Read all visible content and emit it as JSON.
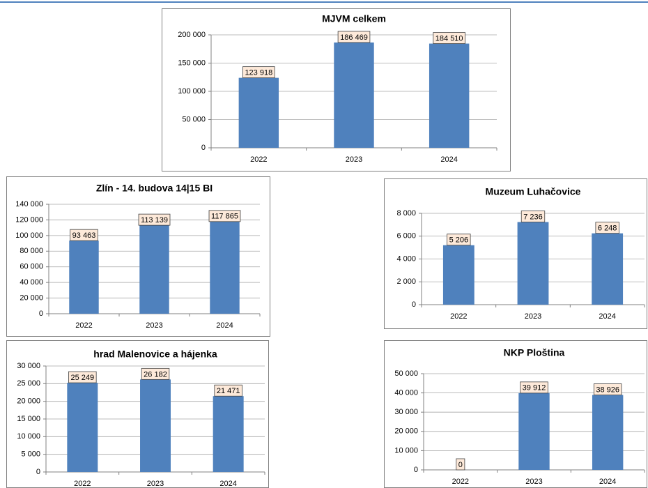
{
  "chart_data": [
    {
      "type": "bar",
      "title": "MJVM celkem",
      "categories": [
        "2022",
        "2023",
        "2024"
      ],
      "values": [
        123918,
        186469,
        184510
      ],
      "value_labels": [
        "123 918",
        "186 469",
        "184 510"
      ],
      "color": "#4f81bd",
      "ylim": [
        0,
        200000
      ],
      "yticks": [
        0,
        {
          "value": 50000,
          "label": "50 000"
        },
        {
          "value": 100000,
          "label": "100 000"
        },
        {
          "value": 150000,
          "label": "150 000"
        },
        {
          "value": 200000,
          "label": "200 000"
        }
      ],
      "grid": true
    },
    {
      "type": "bar",
      "title": "Zlín - 14. budova 14|15 BI",
      "categories": [
        "2022",
        "2023",
        "2024"
      ],
      "values": [
        93463,
        113139,
        117865
      ],
      "value_labels": [
        "93 463",
        "113 139",
        "117 865"
      ],
      "color": "#4f81bd",
      "ylim": [
        0,
        140000
      ],
      "yticks": [
        0,
        {
          "value": 20000,
          "label": "20 000"
        },
        {
          "value": 40000,
          "label": "40 000"
        },
        {
          "value": 60000,
          "label": "60 000"
        },
        {
          "value": 80000,
          "label": "80 000"
        },
        {
          "value": 100000,
          "label": "100 000"
        },
        {
          "value": 120000,
          "label": "120 000"
        },
        {
          "value": 140000,
          "label": "140 000"
        }
      ],
      "grid": true
    },
    {
      "type": "bar",
      "title": "Muzeum Luhačovice",
      "categories": [
        "2022",
        "2023",
        "2024"
      ],
      "values": [
        5206,
        7236,
        6248
      ],
      "value_labels": [
        "5 206",
        "7 236",
        "6 248"
      ],
      "color": "#4f81bd",
      "ylim": [
        0,
        8000
      ],
      "yticks": [
        0,
        {
          "value": 2000,
          "label": "2 000"
        },
        {
          "value": 4000,
          "label": "4 000"
        },
        {
          "value": 6000,
          "label": "6 000"
        },
        {
          "value": 8000,
          "label": "8 000"
        }
      ],
      "grid": true
    },
    {
      "type": "bar",
      "title": "hrad Malenovice a hájenka",
      "categories": [
        "2022",
        "2023",
        "2024"
      ],
      "values": [
        25249,
        26182,
        21471
      ],
      "value_labels": [
        "25 249",
        "26 182",
        "21 471"
      ],
      "color": "#4f81bd",
      "ylim": [
        0,
        30000
      ],
      "yticks": [
        0,
        {
          "value": 5000,
          "label": "5 000"
        },
        {
          "value": 10000,
          "label": "10 000"
        },
        {
          "value": 15000,
          "label": "15 000"
        },
        {
          "value": 20000,
          "label": "20 000"
        },
        {
          "value": 25000,
          "label": "25 000"
        },
        {
          "value": 30000,
          "label": "30 000"
        }
      ],
      "grid": true
    },
    {
      "type": "bar",
      "title": "NKP Ploština",
      "categories": [
        "2022",
        "2023",
        "2024"
      ],
      "values": [
        0,
        39912,
        38926
      ],
      "value_labels": [
        "0",
        "39 912",
        "38 926"
      ],
      "color": "#4f81bd",
      "ylim": [
        0,
        50000
      ],
      "yticks": [
        0,
        {
          "value": 10000,
          "label": "10 000"
        },
        {
          "value": 20000,
          "label": "20 000"
        },
        {
          "value": 30000,
          "label": "30 000"
        },
        {
          "value": 40000,
          "label": "40 000"
        },
        {
          "value": 50000,
          "label": "50 000"
        }
      ],
      "grid": true
    }
  ]
}
